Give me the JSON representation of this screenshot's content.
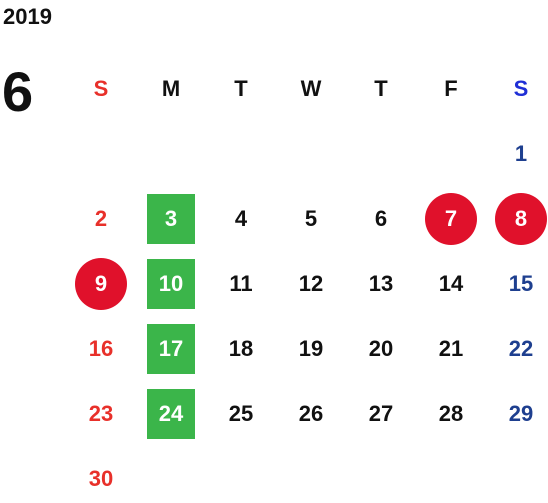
{
  "year": "2019",
  "month": "6",
  "colors": {
    "sunday": "#e8302a",
    "saturday_header": "#1f2fd6",
    "saturday": "#1e3f8f",
    "weekday": "#111111",
    "holiday_circle": "#e0112b",
    "highlight_square": "#3bb54a"
  },
  "weekdays": [
    "S",
    "M",
    "T",
    "W",
    "T",
    "F",
    "S"
  ],
  "weeks": [
    [
      "",
      "",
      "",
      "",
      "",
      "",
      "1"
    ],
    [
      "2",
      "3",
      "4",
      "5",
      "6",
      "7",
      "8"
    ],
    [
      "9",
      "10",
      "11",
      "12",
      "13",
      "14",
      "15"
    ],
    [
      "16",
      "17",
      "18",
      "19",
      "20",
      "21",
      "22"
    ],
    [
      "23",
      "24",
      "25",
      "26",
      "27",
      "28",
      "29"
    ],
    [
      "30",
      "",
      "",
      "",
      "",
      "",
      ""
    ]
  ],
  "circled_days": [
    "7",
    "8",
    "9"
  ],
  "highlighted_days": [
    "3",
    "10",
    "17",
    "24"
  ]
}
